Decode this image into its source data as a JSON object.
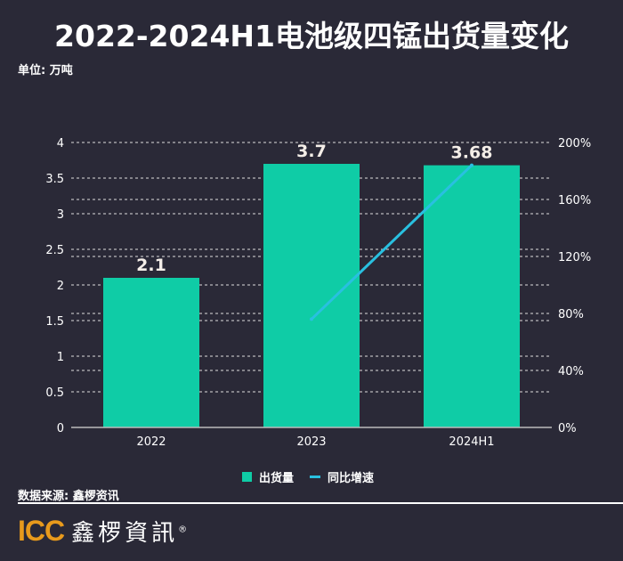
{
  "title": "2022-2024H1电池级四锰出货量变化",
  "unit": "单位: 万吨",
  "source": "数据来源: 鑫椤资讯",
  "logo": {
    "icc": "ICC",
    "cn": "鑫椤資訊",
    "reg": "®"
  },
  "colors": {
    "bar": "#0fcca6",
    "line": "#29c0e0",
    "bg": "#2a2937"
  },
  "chart_data": {
    "type": "bar+line",
    "categories": [
      "2022",
      "2023",
      "2024H1"
    ],
    "series": [
      {
        "name": "出货量",
        "type": "bar",
        "axis": "left",
        "values": [
          2.1,
          3.7,
          3.68
        ],
        "labels": [
          "2.1",
          "3.7",
          "3.68"
        ]
      },
      {
        "name": "同比增速",
        "type": "line",
        "axis": "right",
        "values": [
          null,
          76,
          184
        ]
      }
    ],
    "left_axis": {
      "range": [
        0,
        4
      ],
      "ticks": [
        "0",
        "0.5",
        "1",
        "1.5",
        "2",
        "2.5",
        "3",
        "3.5",
        "4"
      ]
    },
    "right_axis": {
      "range": [
        0,
        200
      ],
      "ticks": [
        "0%",
        "40%",
        "80%",
        "120%",
        "160%",
        "200%"
      ]
    },
    "grid": true,
    "legend": "bottom-center"
  }
}
